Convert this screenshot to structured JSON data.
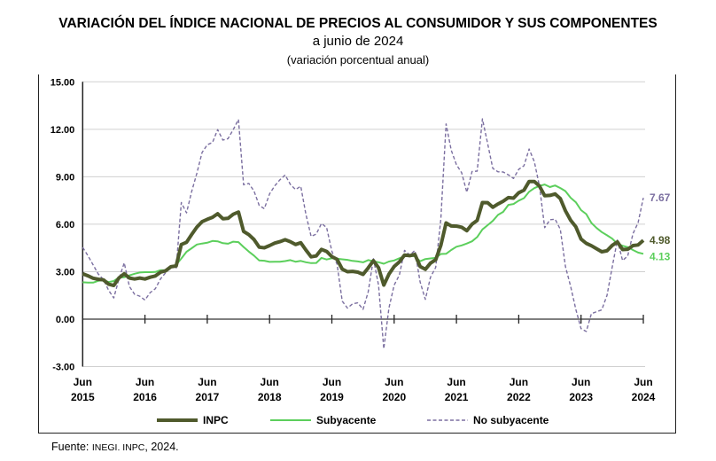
{
  "title": "VARIACIÓN DEL ÍNDICE NACIONAL DE PRECIOS AL CONSUMIDOR Y SUS COMPONENTES",
  "subtitle": "a junio de 2024",
  "subtitle2": "(variación porcentual anual)",
  "source": {
    "prefix": "Fuente: ",
    "org": "INEGI. INPC",
    "suffix": ", 2024."
  },
  "chart_data": {
    "type": "line",
    "title": "VARIACIÓN DEL ÍNDICE NACIONAL DE PRECIOS AL CONSUMIDOR Y SUS COMPONENTES",
    "x_start": "2015-06",
    "x_end": "2024-06",
    "frequency": "monthly",
    "ylim": [
      -3,
      15
    ],
    "yticks": [
      "15.00",
      "12.00",
      "9.00",
      "6.00",
      "3.00",
      "0.00",
      "-3.00"
    ],
    "xticks": [
      [
        "Jun",
        "2015"
      ],
      [
        "Jun",
        "2016"
      ],
      [
        "Jun",
        "2017"
      ],
      [
        "Jun",
        "2018"
      ],
      [
        "Jun",
        "2019"
      ],
      [
        "Jun",
        "2020"
      ],
      [
        "Jun",
        "2021"
      ],
      [
        "Jun",
        "2022"
      ],
      [
        "Jun",
        "2023"
      ],
      [
        "Jun",
        "2024"
      ]
    ],
    "grid": "horizontal",
    "legend_position": "bottom",
    "series": [
      {
        "name": "INPC",
        "color": "#4f5a2c",
        "style": "solid-thick",
        "end_label": "4.98",
        "values": [
          2.87,
          2.74,
          2.59,
          2.52,
          2.48,
          2.21,
          2.13,
          2.61,
          2.87,
          2.6,
          2.54,
          2.6,
          2.54,
          2.65,
          2.73,
          2.97,
          3.06,
          3.31,
          3.36,
          4.72,
          4.86,
          5.35,
          5.82,
          6.16,
          6.31,
          6.44,
          6.66,
          6.35,
          6.37,
          6.63,
          6.77,
          5.55,
          5.34,
          5.04,
          4.55,
          4.51,
          4.65,
          4.81,
          4.9,
          5.02,
          4.9,
          4.72,
          4.83,
          4.37,
          3.94,
          4.0,
          4.41,
          4.28,
          3.95,
          3.78,
          3.16,
          3.0,
          3.02,
          2.97,
          2.83,
          3.24,
          3.7,
          3.25,
          2.15,
          2.84,
          3.33,
          3.62,
          4.05,
          4.01,
          4.09,
          3.33,
          3.15,
          3.54,
          3.76,
          4.67,
          6.08,
          5.89,
          5.88,
          5.81,
          5.59,
          6.0,
          6.24,
          7.37,
          7.36,
          7.07,
          7.28,
          7.45,
          7.68,
          7.65,
          7.99,
          8.15,
          8.7,
          8.7,
          8.41,
          7.8,
          7.82,
          7.91,
          7.62,
          6.85,
          6.25,
          5.84,
          5.06,
          4.79,
          4.64,
          4.45,
          4.26,
          4.32,
          4.66,
          4.88,
          4.4,
          4.42,
          4.65,
          4.69,
          4.98
        ]
      },
      {
        "name": "Subyacente",
        "color": "#5ccf5c",
        "style": "solid",
        "end_label": "4.13",
        "values": [
          2.33,
          2.31,
          2.31,
          2.42,
          2.47,
          2.34,
          2.41,
          2.64,
          2.65,
          2.76,
          2.87,
          2.95,
          2.97,
          2.97,
          2.98,
          3.1,
          3.09,
          3.29,
          3.44,
          3.83,
          4.26,
          4.48,
          4.72,
          4.78,
          4.83,
          4.94,
          4.92,
          4.8,
          4.77,
          4.9,
          4.87,
          4.56,
          4.27,
          4.02,
          3.71,
          3.69,
          3.62,
          3.63,
          3.63,
          3.67,
          3.73,
          3.63,
          3.68,
          3.6,
          3.54,
          3.55,
          3.87,
          3.77,
          3.85,
          3.82,
          3.78,
          3.75,
          3.68,
          3.65,
          3.59,
          3.73,
          3.66,
          3.6,
          3.5,
          3.64,
          3.71,
          3.85,
          3.97,
          3.99,
          3.98,
          3.66,
          3.8,
          3.84,
          3.87,
          4.12,
          4.13,
          4.37,
          4.58,
          4.66,
          4.78,
          4.92,
          5.19,
          5.67,
          5.94,
          6.21,
          6.59,
          6.78,
          7.22,
          7.28,
          7.49,
          7.65,
          8.05,
          8.28,
          8.42,
          8.51,
          8.35,
          8.45,
          8.29,
          8.09,
          7.67,
          7.39,
          6.89,
          6.64,
          6.08,
          5.76,
          5.5,
          5.3,
          5.09,
          4.76,
          4.64,
          4.55,
          4.37,
          4.21,
          4.13
        ]
      },
      {
        "name": "No subyacente",
        "color": "#7b6fa0",
        "style": "dashed",
        "end_label": "7.67",
        "values": [
          4.54,
          4.01,
          3.44,
          2.85,
          2.51,
          1.82,
          1.34,
          2.56,
          3.56,
          2.07,
          1.57,
          1.45,
          1.21,
          1.68,
          1.92,
          2.55,
          2.94,
          3.33,
          3.22,
          7.37,
          6.72,
          8.07,
          9.23,
          10.53,
          11.02,
          11.17,
          11.98,
          11.32,
          11.41,
          11.98,
          12.62,
          8.49,
          8.58,
          8.1,
          7.19,
          6.98,
          7.92,
          8.43,
          8.81,
          9.11,
          8.52,
          8.19,
          8.4,
          6.63,
          5.23,
          5.38,
          6.05,
          5.79,
          4.29,
          3.47,
          1.14,
          0.7,
          0.97,
          1.03,
          0.62,
          1.72,
          3.82,
          2.14,
          -1.87,
          0.7,
          2.15,
          2.79,
          4.35,
          4.05,
          4.34,
          2.35,
          1.25,
          2.65,
          3.27,
          6.34,
          12.34,
          10.68,
          9.76,
          9.25,
          8.02,
          9.33,
          9.36,
          12.66,
          11.1,
          9.53,
          9.31,
          9.3,
          9.12,
          8.89,
          9.47,
          9.7,
          10.75,
          9.95,
          8.4,
          5.78,
          6.28,
          6.32,
          5.68,
          3.33,
          2.06,
          0.62,
          -0.6,
          -0.78,
          0.35,
          0.47,
          0.59,
          1.5,
          3.3,
          5.0,
          3.7,
          4.0,
          5.4,
          6.1,
          7.67
        ]
      }
    ]
  }
}
